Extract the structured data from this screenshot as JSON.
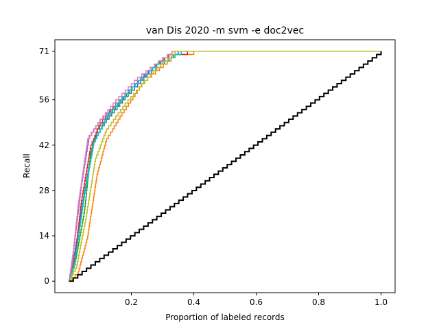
{
  "chart_data": {
    "type": "line",
    "title": "van Dis 2020 -m svm -e doc2vec",
    "xlabel": "Proportion of labeled records",
    "ylabel": "Recall",
    "xlim": [
      -0.045,
      1.045
    ],
    "ylim": [
      -3.55,
      74.55
    ],
    "x_ticks": [
      0.2,
      0.4,
      0.6,
      0.8,
      1.0
    ],
    "x_tick_labels": [
      "0.2",
      "0.4",
      "0.6",
      "0.8",
      "1.0"
    ],
    "y_ticks": [
      0,
      14,
      28,
      42,
      56,
      71
    ],
    "y_tick_labels": [
      "0",
      "14",
      "28",
      "42",
      "56",
      "71"
    ],
    "grid": false,
    "legend": "none",
    "total_relevant": 71,
    "series_colors": [
      "#1f77b4",
      "#ff7f0e",
      "#2ca02c",
      "#d62728",
      "#9467bd",
      "#8c564b",
      "#e377c2",
      "#7f7f7f",
      "#bcbd22",
      "#17becf",
      "#1f77b4",
      "#ff7f0e",
      "#2ca02c",
      "#d62728",
      "#9467bd",
      "#8c564b",
      "#e377c2",
      "#7f7f7f",
      "#bcbd22",
      "#17becf",
      "#1f77b4",
      "#ff7f0e",
      "#2ca02c",
      "#d62728",
      "#9467bd",
      "#8c564b",
      "#e377c2",
      "#7f7f7f",
      "#bcbd22",
      "#17becf"
    ],
    "series_profiles": [
      {
        "color": "#1f77b4",
        "points": [
          [
            0.0,
            0
          ],
          [
            0.02,
            10
          ],
          [
            0.05,
            28
          ],
          [
            0.08,
            44
          ],
          [
            0.12,
            50
          ],
          [
            0.18,
            57
          ],
          [
            0.25,
            64
          ],
          [
            0.35,
            71
          ],
          [
            1.0,
            71
          ]
        ]
      },
      {
        "color": "#ff7f0e",
        "points": [
          [
            0.0,
            0
          ],
          [
            0.03,
            3
          ],
          [
            0.06,
            14
          ],
          [
            0.09,
            33
          ],
          [
            0.12,
            44
          ],
          [
            0.17,
            52
          ],
          [
            0.24,
            62
          ],
          [
            0.34,
            70
          ],
          [
            0.4,
            71
          ],
          [
            1.0,
            71
          ]
        ]
      },
      {
        "color": "#2ca02c",
        "points": [
          [
            0.0,
            0
          ],
          [
            0.02,
            6
          ],
          [
            0.05,
            22
          ],
          [
            0.07,
            40
          ],
          [
            0.09,
            47
          ],
          [
            0.14,
            53
          ],
          [
            0.22,
            62
          ],
          [
            0.3,
            69
          ],
          [
            0.36,
            71
          ],
          [
            1.0,
            71
          ]
        ]
      },
      {
        "color": "#d62728",
        "points": [
          [
            0.0,
            0
          ],
          [
            0.02,
            8
          ],
          [
            0.04,
            25
          ],
          [
            0.07,
            42
          ],
          [
            0.1,
            49
          ],
          [
            0.15,
            55
          ],
          [
            0.23,
            63
          ],
          [
            0.32,
            70
          ],
          [
            0.38,
            71
          ],
          [
            1.0,
            71
          ]
        ]
      },
      {
        "color": "#9467bd",
        "points": [
          [
            0.0,
            0
          ],
          [
            0.015,
            10
          ],
          [
            0.04,
            30
          ],
          [
            0.065,
            45
          ],
          [
            0.1,
            50
          ],
          [
            0.16,
            56
          ],
          [
            0.24,
            64
          ],
          [
            0.33,
            71
          ],
          [
            1.0,
            71
          ]
        ]
      },
      {
        "color": "#e377c2",
        "points": [
          [
            0.0,
            0
          ],
          [
            0.01,
            6
          ],
          [
            0.03,
            24
          ],
          [
            0.06,
            44
          ],
          [
            0.1,
            50
          ],
          [
            0.15,
            56
          ],
          [
            0.22,
            63
          ],
          [
            0.3,
            69
          ],
          [
            0.33,
            71
          ],
          [
            1.0,
            71
          ]
        ]
      },
      {
        "color": "#17becf",
        "points": [
          [
            0.0,
            0
          ],
          [
            0.02,
            7
          ],
          [
            0.05,
            27
          ],
          [
            0.08,
            43
          ],
          [
            0.12,
            51
          ],
          [
            0.19,
            59
          ],
          [
            0.28,
            67
          ],
          [
            0.36,
            71
          ],
          [
            1.0,
            71
          ]
        ]
      },
      {
        "color": "#bcbd22",
        "points": [
          [
            0.0,
            0
          ],
          [
            0.025,
            5
          ],
          [
            0.055,
            20
          ],
          [
            0.085,
            38
          ],
          [
            0.12,
            47
          ],
          [
            0.18,
            55
          ],
          [
            0.27,
            65
          ],
          [
            0.34,
            71
          ],
          [
            1.0,
            71
          ]
        ]
      }
    ],
    "baseline": {
      "name": "random",
      "color": "#000000",
      "points": [
        [
          0.0,
          0
        ],
        [
          1.0,
          71
        ]
      ]
    }
  }
}
